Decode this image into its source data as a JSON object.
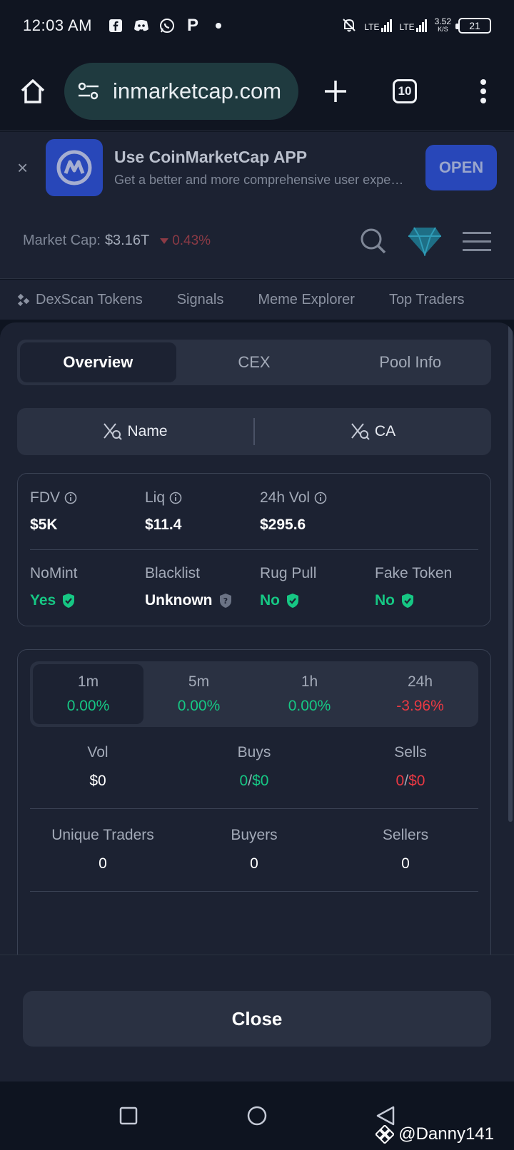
{
  "status_bar": {
    "time": "12:03 AM",
    "net_speed_value": "3.52",
    "net_speed_unit": "K/S",
    "battery": "21",
    "signal_1": "LTE",
    "signal_2": "LTE",
    "notif_p": "P"
  },
  "browser": {
    "url": "inmarketcap.com",
    "tab_count": "10"
  },
  "banner": {
    "title": "Use CoinMarketCap APP",
    "subtitle": "Get a better and more comprehensive user experience",
    "open_label": "OPEN",
    "close_glyph": "×"
  },
  "market": {
    "label": "Market Cap:",
    "value": "$3.16T",
    "change": "0.43%"
  },
  "nav_tabs": [
    "DexScan Tokens",
    "Signals",
    "Meme Explorer",
    "Top Traders"
  ],
  "segments": [
    "Overview",
    "CEX",
    "Pool Info"
  ],
  "search": {
    "name_label": "Name",
    "ca_label": "CA"
  },
  "stats_top": [
    {
      "label": "FDV",
      "value": "$5K"
    },
    {
      "label": "Liq",
      "value": "$11.4"
    },
    {
      "label": "24h Vol",
      "value": "$295.6"
    }
  ],
  "stats_flags": [
    {
      "label": "NoMint",
      "value": "Yes"
    },
    {
      "label": "Blacklist",
      "value": "Unknown"
    },
    {
      "label": "Rug Pull",
      "value": "No"
    },
    {
      "label": "Fake Token",
      "value": "No"
    }
  ],
  "timeframes": [
    {
      "label": "1m",
      "value": "0.00%"
    },
    {
      "label": "5m",
      "value": "0.00%"
    },
    {
      "label": "1h",
      "value": "0.00%"
    },
    {
      "label": "24h",
      "value": "-3.96%"
    }
  ],
  "tx_row1": {
    "vol_label": "Vol",
    "vol_value": "$0",
    "buys_label": "Buys",
    "buys_count": "0",
    "buys_sep": "/",
    "buys_amount": "$0",
    "sells_label": "Sells",
    "sells_count": "0",
    "sells_sep": "/",
    "sells_amount": "$0"
  },
  "tx_row2": {
    "traders_label": "Unique Traders",
    "traders_value": "0",
    "buyers_label": "Buyers",
    "buyers_value": "0",
    "sellers_label": "Sellers",
    "sellers_value": "0"
  },
  "footer": {
    "close_label": "Close"
  },
  "watermark": "@Danny141",
  "colors": {
    "positive": "#16c784",
    "negative": "#ea3943",
    "accent": "#2847b9"
  }
}
